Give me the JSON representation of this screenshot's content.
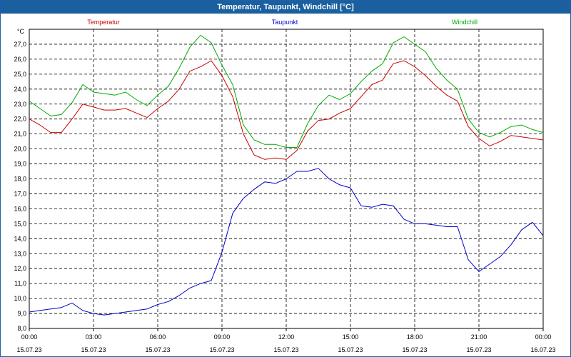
{
  "window": {
    "title": "Temperatur, Taupunkt, Windchill [°C]"
  },
  "chart_data": {
    "type": "line",
    "title": "Temperatur, Taupunkt, Windchill [°C]",
    "ylabel": "°C",
    "ylim": [
      8.0,
      28.0
    ],
    "yticks": [
      "8,0",
      "9,0",
      "10,0",
      "11,0",
      "12,0",
      "13,0",
      "14,0",
      "15,0",
      "16,0",
      "17,0",
      "18,0",
      "19,0",
      "20,0",
      "21,0",
      "22,0",
      "23,0",
      "24,0",
      "25,0",
      "26,0",
      "27,0"
    ],
    "xlim_hours": [
      0,
      24
    ],
    "xticks": [
      {
        "time": "00:00",
        "date": "15.07.23"
      },
      {
        "time": "03:00",
        "date": "15.07.23"
      },
      {
        "time": "06:00",
        "date": "15.07.23"
      },
      {
        "time": "09:00",
        "date": "15.07.23"
      },
      {
        "time": "12:00",
        "date": "15.07.23"
      },
      {
        "time": "15:00",
        "date": "15.07.23"
      },
      {
        "time": "18:00",
        "date": "15.07.23"
      },
      {
        "time": "21:00",
        "date": "15.07.23"
      },
      {
        "time": "00:00",
        "date": "16.07.23"
      }
    ],
    "grid": true,
    "x": [
      0,
      0.5,
      1,
      1.5,
      2,
      2.5,
      3,
      3.5,
      4,
      4.5,
      5,
      5.5,
      6,
      6.5,
      7,
      7.5,
      8,
      8.5,
      9,
      9.5,
      10,
      10.5,
      11,
      11.5,
      12,
      12.5,
      13,
      13.5,
      14,
      14.5,
      15,
      15.5,
      16,
      16.5,
      17,
      17.5,
      18,
      18.5,
      19,
      19.5,
      20,
      20.5,
      21,
      21.5,
      22,
      22.5,
      23,
      23.5,
      24
    ],
    "series": [
      {
        "name": "Temperatur",
        "color": "#cc0000",
        "values": [
          22.0,
          21.6,
          21.1,
          21.1,
          22.0,
          23.0,
          22.8,
          22.6,
          22.6,
          22.7,
          22.4,
          22.1,
          22.7,
          23.2,
          24.0,
          25.2,
          25.5,
          25.9,
          24.9,
          23.5,
          21.0,
          19.6,
          19.3,
          19.4,
          19.3,
          19.9,
          21.2,
          21.9,
          22.0,
          22.4,
          22.7,
          23.5,
          24.3,
          24.6,
          25.7,
          25.9,
          25.5,
          24.9,
          24.2,
          23.6,
          23.2,
          21.5,
          20.7,
          20.2,
          20.5,
          20.9,
          20.8,
          20.7,
          20.6
        ]
      },
      {
        "name": "Taupunkt",
        "color": "#0000cc",
        "values": [
          9.1,
          9.2,
          9.3,
          9.4,
          9.7,
          9.2,
          9.0,
          8.9,
          9.0,
          9.1,
          9.2,
          9.3,
          9.6,
          9.8,
          10.2,
          10.7,
          11.0,
          11.2,
          13.1,
          15.7,
          16.7,
          17.3,
          17.8,
          17.7,
          18.0,
          18.5,
          18.5,
          18.7,
          18.0,
          17.6,
          17.4,
          16.2,
          16.1,
          16.3,
          16.2,
          15.3,
          15.0,
          15.0,
          14.9,
          14.8,
          14.8,
          12.6,
          11.8,
          12.3,
          12.8,
          13.6,
          14.6,
          15.1,
          14.2
        ]
      },
      {
        "name": "Windchill",
        "color": "#00aa00",
        "values": [
          23.2,
          22.7,
          22.2,
          22.3,
          23.1,
          24.3,
          23.8,
          23.7,
          23.6,
          23.8,
          23.3,
          22.9,
          23.6,
          24.2,
          25.4,
          26.8,
          27.6,
          27.1,
          25.6,
          24.3,
          21.6,
          20.6,
          20.3,
          20.3,
          20.1,
          20.1,
          21.7,
          22.9,
          23.6,
          23.3,
          23.7,
          24.5,
          25.2,
          25.7,
          27.1,
          27.5,
          27.0,
          26.5,
          25.4,
          24.6,
          24.0,
          22.0,
          21.1,
          20.8,
          21.1,
          21.5,
          21.6,
          21.3,
          21.1
        ]
      }
    ]
  }
}
